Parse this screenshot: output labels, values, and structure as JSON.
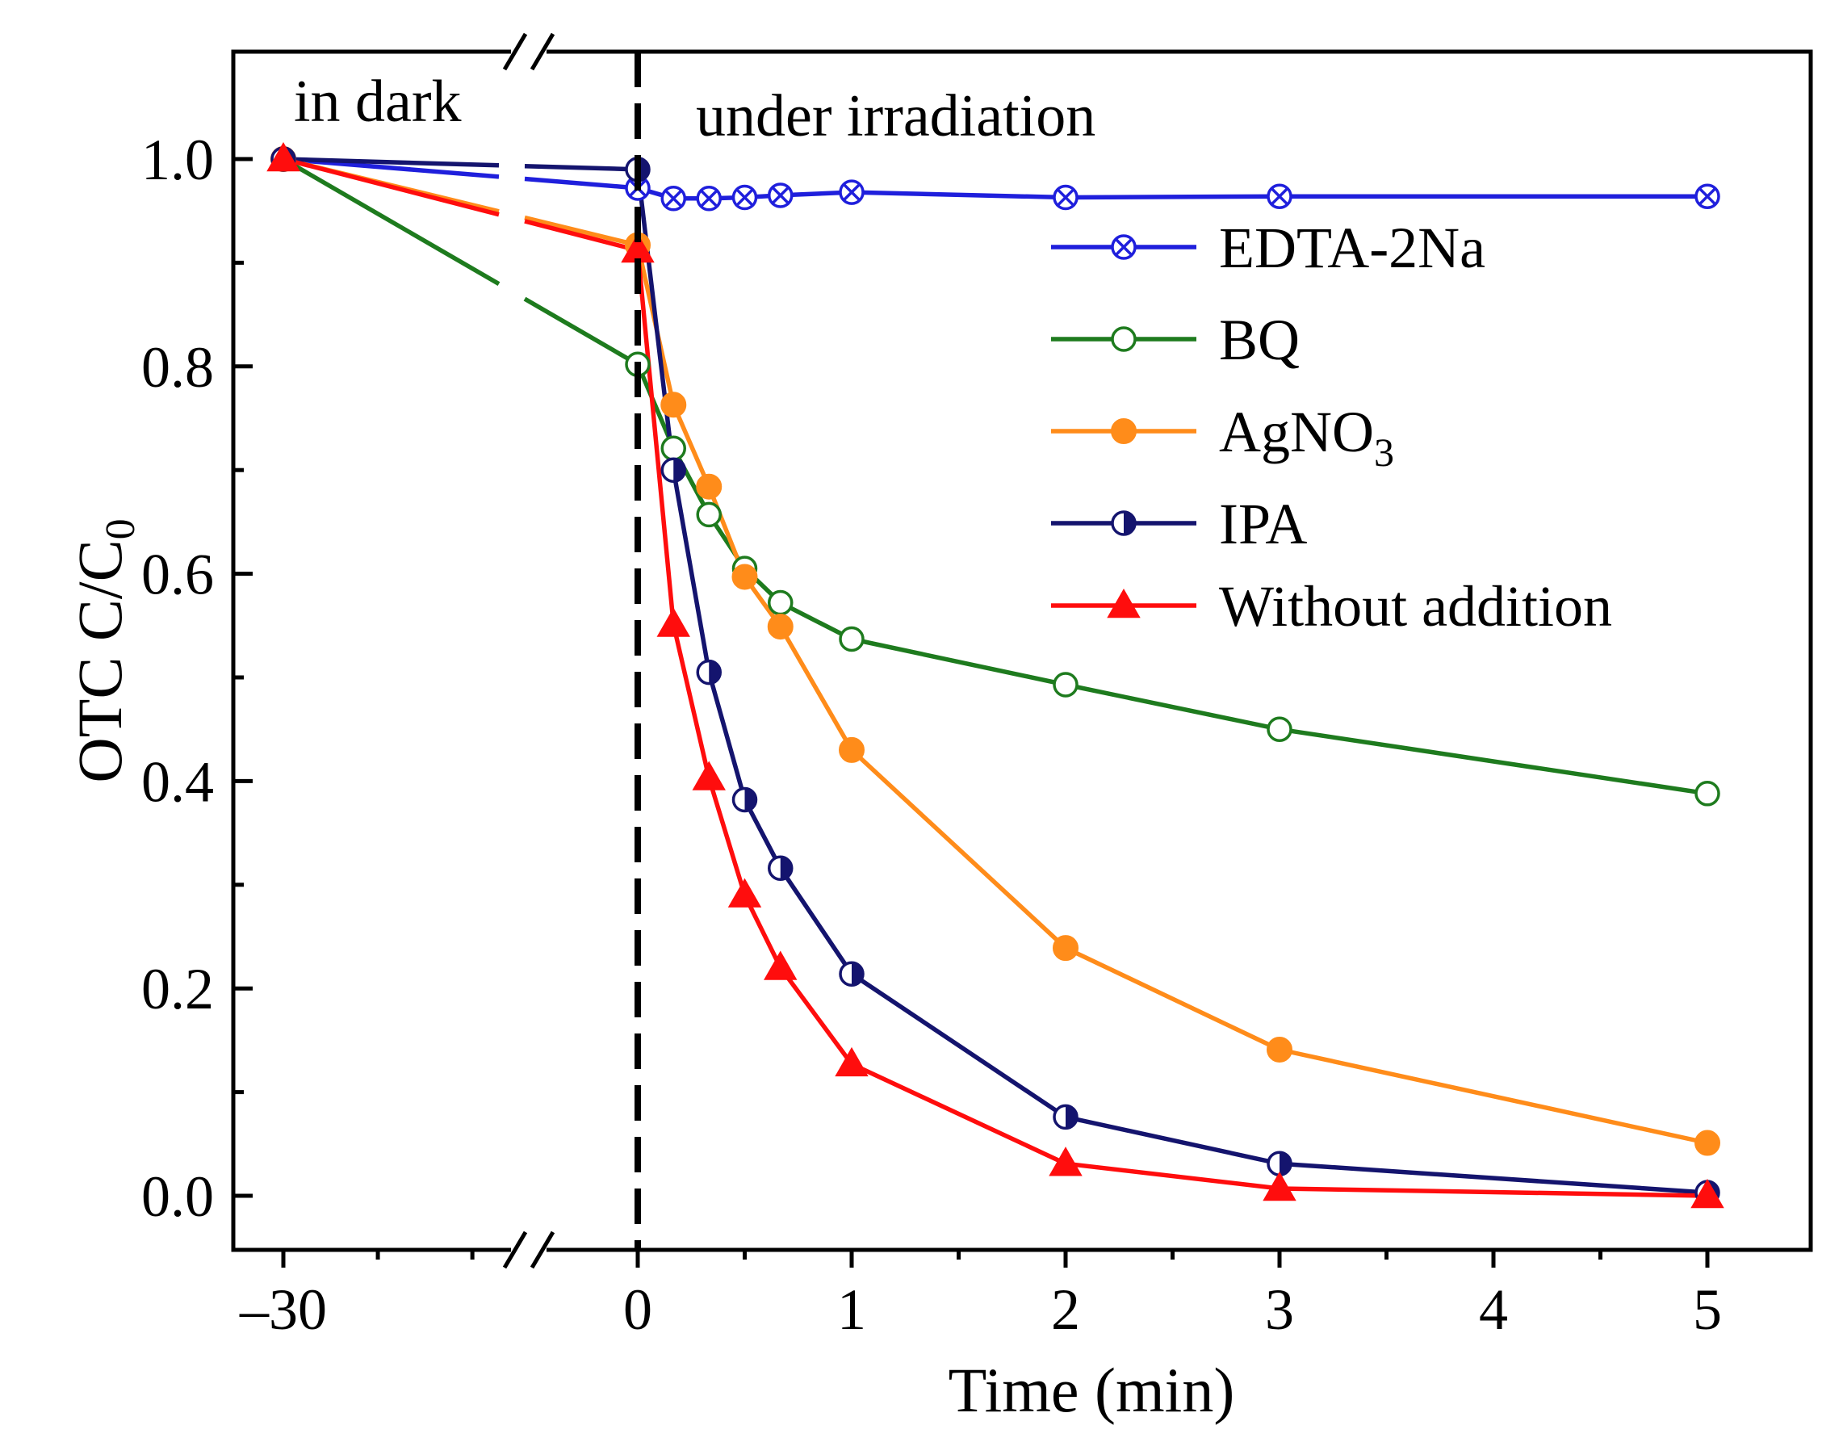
{
  "chart_data": {
    "type": "line",
    "title": "",
    "xlabel": "Time (min)",
    "ylabel": {
      "main": "OTC C/C",
      "subscript": "0"
    },
    "xlim": [
      -30,
      5
    ],
    "ylim": [
      -0.05,
      1.1
    ],
    "x_axis_break": {
      "between": [
        -30,
        0
      ]
    },
    "x_ticks": [
      {
        "value": -30,
        "label": "–30"
      },
      {
        "value": 0,
        "label": "0"
      },
      {
        "value": 1,
        "label": "1"
      },
      {
        "value": 2,
        "label": "2"
      },
      {
        "value": 3,
        "label": "3"
      },
      {
        "value": 4,
        "label": "4"
      },
      {
        "value": 5,
        "label": "5"
      }
    ],
    "y_ticks": [
      {
        "value": 0.0,
        "label": "0.0"
      },
      {
        "value": 0.2,
        "label": "0.2"
      },
      {
        "value": 0.4,
        "label": "0.4"
      },
      {
        "value": 0.6,
        "label": "0.6"
      },
      {
        "value": 0.8,
        "label": "0.8"
      },
      {
        "value": 1.0,
        "label": "1.0"
      }
    ],
    "divider_at": 0,
    "region_labels": {
      "left": "in dark",
      "right": "under irradiation"
    },
    "legend_position": "upper-right",
    "x": [
      -30,
      0,
      0.167,
      0.333,
      0.5,
      0.667,
      1,
      2,
      3,
      5
    ],
    "series": [
      {
        "name": "EDTA-2Na",
        "color": "#1f1fdc",
        "marker": "circle-x",
        "values": [
          1.0,
          0.972,
          0.962,
          0.962,
          0.963,
          0.965,
          0.968,
          0.963,
          0.964,
          0.964
        ]
      },
      {
        "name": "BQ",
        "color": "#1e7b1e",
        "marker": "circle-open",
        "values": [
          1.0,
          0.802,
          0.721,
          0.657,
          0.605,
          0.572,
          0.537,
          0.493,
          0.45,
          0.388
        ]
      },
      {
        "name": "AgNO",
        "name_subscript": "3",
        "color": "#ff8c1a",
        "marker": "circle-filled",
        "values": [
          1.0,
          0.917,
          0.763,
          0.684,
          0.597,
          0.549,
          0.43,
          0.239,
          0.141,
          0.051
        ]
      },
      {
        "name": "IPA",
        "color": "#14146e",
        "marker": "circle-half",
        "values": [
          1.0,
          0.99,
          0.7,
          0.505,
          0.382,
          0.316,
          0.214,
          0.076,
          0.031,
          0.003
        ]
      },
      {
        "name": "Without addition",
        "color": "#ff0d0d",
        "marker": "triangle-filled",
        "values": [
          1.0,
          0.912,
          0.551,
          0.403,
          0.29,
          0.22,
          0.127,
          0.031,
          0.007,
          0.0
        ]
      }
    ]
  }
}
